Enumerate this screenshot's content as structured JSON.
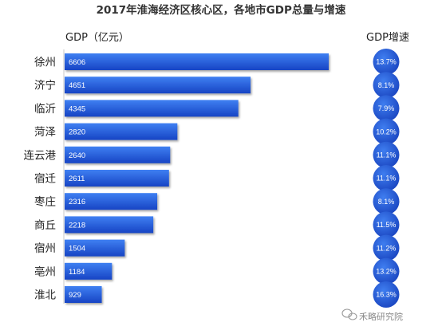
{
  "chart_data": {
    "type": "bar",
    "orientation": "horizontal",
    "title": "2017年淮海经济区核心区，各地市GDP总量与增速",
    "categories": [
      "徐州",
      "济宁",
      "临沂",
      "菏泽",
      "连云港",
      "宿迁",
      "枣庄",
      "商丘",
      "宿州",
      "亳州",
      "淮北"
    ],
    "series": [
      {
        "name": "GDP（亿元）",
        "values": [
          6606,
          4651,
          4345,
          2820,
          2640,
          2611,
          2316,
          2218,
          1504,
          1184,
          929
        ]
      },
      {
        "name": "GDP增速",
        "values": [
          13.7,
          8.1,
          7.9,
          10.2,
          11.1,
          11.1,
          8.1,
          11.5,
          11.2,
          13.2,
          16.3
        ],
        "unit": "%"
      }
    ],
    "value_labels": [
      "6606",
      "4651",
      "4345",
      "2820",
      "2640",
      "2611",
      "2316",
      "2218",
      "1504",
      "1184",
      "929"
    ],
    "growth_labels": [
      "13.7%",
      "8.1%",
      "7.9%",
      "10.2%",
      "11.1%",
      "11.1%",
      "8.1%",
      "11.5%",
      "11.2%",
      "13.2%",
      "16.3%"
    ],
    "xlim": [
      0,
      6606
    ],
    "colors": {
      "bar": "#1f57d6",
      "bar_light": "#3d7cf0",
      "bubble": "#1e4fd0"
    }
  },
  "watermark": "禾略研究院"
}
